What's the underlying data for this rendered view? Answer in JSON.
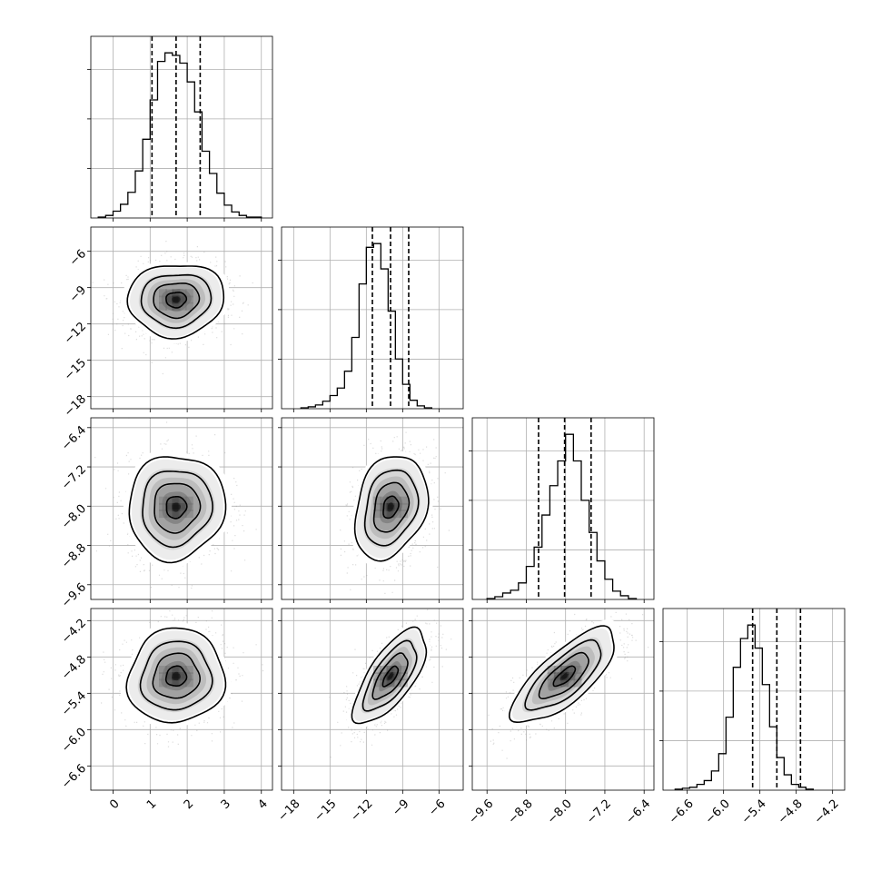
{
  "chart_data": {
    "type": "corner",
    "grid": true,
    "quantile_lines": "dashed",
    "parameters": [
      {
        "range": [
          -0.6,
          4.3
        ],
        "ticks": [
          "0",
          "1",
          "2",
          "3",
          "4"
        ],
        "tick_values": [
          0,
          1,
          2,
          3,
          4
        ],
        "quantiles": [
          1.05,
          1.7,
          2.35
        ],
        "histogram": {
          "bin_start": -0.4,
          "bin_width": 0.2,
          "counts": [
            1,
            3,
            8,
            16,
            30,
            55,
            92,
            138,
            183,
            193,
            190,
            181,
            159,
            124,
            78,
            52,
            29,
            15,
            7,
            3,
            1,
            1
          ]
        }
      },
      {
        "range": [
          -19.0,
          -4.0
        ],
        "ticks": [
          "-18",
          "-15",
          "-12",
          "-9",
          "-6"
        ],
        "tick_values": [
          -18,
          -15,
          -12,
          -9,
          -6
        ],
        "quantiles": [
          -11.5,
          -10.0,
          -8.5
        ],
        "histogram": {
          "bin_start": -17.4,
          "bin_width": 0.6,
          "counts": [
            1,
            2,
            4,
            8,
            14,
            22,
            40,
            76,
            133,
            172,
            176,
            149,
            104,
            53,
            26,
            9,
            3,
            1
          ]
        }
      },
      {
        "range": [
          -9.9,
          -6.2
        ],
        "ticks": [
          "-9.6",
          "-8.8",
          "-8.0",
          "-7.2",
          "-6.4"
        ],
        "tick_values": [
          -9.6,
          -8.8,
          -8.0,
          -7.2,
          -6.4
        ],
        "quantiles": [
          -8.55,
          -8.02,
          -7.48
        ],
        "histogram": {
          "bin_start": -9.6,
          "bin_width": 0.16,
          "counts": [
            1,
            3,
            7,
            10,
            18,
            36,
            57,
            92,
            124,
            151,
            180,
            151,
            108,
            73,
            42,
            22,
            9,
            4,
            1
          ]
        }
      },
      {
        "range": [
          -7.0,
          -4.0
        ],
        "ticks": [
          "-6.6",
          "-6.0",
          "-5.4",
          "-4.8",
          "-4.2"
        ],
        "tick_values": [
          -6.6,
          -6.0,
          -5.4,
          -4.8,
          -4.2
        ],
        "quantiles": [
          -5.52,
          -5.12,
          -4.73
        ],
        "histogram": {
          "bin_start": -6.8,
          "bin_width": 0.12,
          "counts": [
            1,
            2,
            3,
            6,
            10,
            20,
            38,
            76,
            128,
            158,
            172,
            148,
            110,
            66,
            34,
            16,
            6,
            3,
            1
          ]
        }
      }
    ],
    "pairs": [
      {
        "row": 1,
        "col": 0,
        "mean": [
          1.7,
          -10.0
        ],
        "sd": [
          0.65,
          1.5
        ],
        "corr": 0.05
      },
      {
        "row": 2,
        "col": 0,
        "mean": [
          1.7,
          -8.02
        ],
        "sd": [
          0.65,
          0.53
        ],
        "corr": 0.05
      },
      {
        "row": 2,
        "col": 1,
        "mean": [
          -10.0,
          -8.02
        ],
        "sd": [
          1.5,
          0.53
        ],
        "corr": 0.25
      },
      {
        "row": 3,
        "col": 0,
        "mean": [
          1.7,
          -5.12
        ],
        "sd": [
          0.65,
          0.39
        ],
        "corr": 0.05
      },
      {
        "row": 3,
        "col": 1,
        "mean": [
          -10.0,
          -5.12
        ],
        "sd": [
          1.5,
          0.39
        ],
        "corr": 0.7
      },
      {
        "row": 3,
        "col": 2,
        "mean": [
          -8.02,
          -5.12
        ],
        "sd": [
          0.53,
          0.39
        ],
        "corr": 0.75
      }
    ]
  }
}
